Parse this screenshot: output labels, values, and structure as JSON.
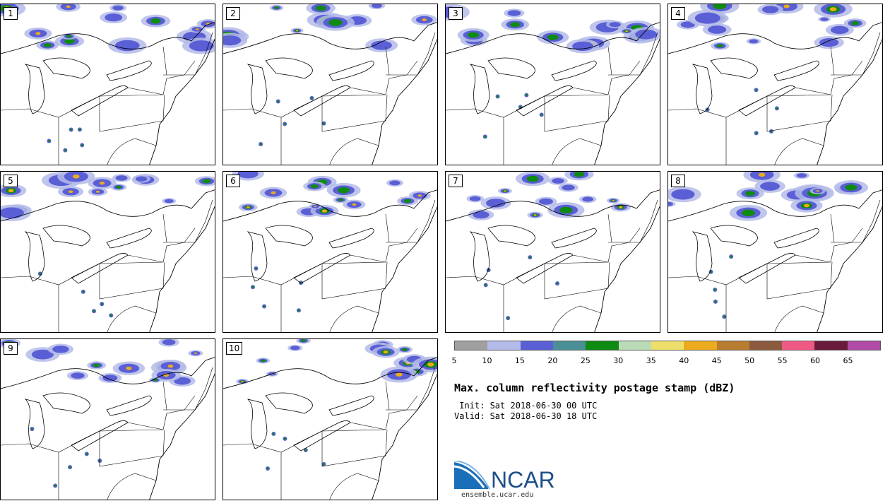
{
  "panels": [
    {
      "label": "1"
    },
    {
      "label": "2"
    },
    {
      "label": "3"
    },
    {
      "label": "4"
    },
    {
      "label": "5"
    },
    {
      "label": "6"
    },
    {
      "label": "7"
    },
    {
      "label": "8"
    },
    {
      "label": "9"
    },
    {
      "label": "10"
    }
  ],
  "colorbar": {
    "colors": [
      "#a0a0a0",
      "#b4bbe8",
      "#5a5fd6",
      "#4a8f96",
      "#0f8a12",
      "#b9dbb8",
      "#eedf6a",
      "#ecab1f",
      "#b87d30",
      "#8c5a3e",
      "#ef5a84",
      "#6a1a3a",
      "#b04ca8"
    ],
    "ticks": [
      "5",
      "10",
      "15",
      "20",
      "25",
      "30",
      "35",
      "40",
      "45",
      "50",
      "55",
      "60",
      "65"
    ]
  },
  "title": "Max. column reflectivity postage stamp (dBZ)",
  "init": " Init: Sat 2018-06-30 00 UTC",
  "valid": "Valid: Sat 2018-06-30 18 UTC",
  "logo": {
    "text": "NCAR",
    "url": "ensemble.ucar.edu",
    "color": "#1b4f8a",
    "accent": "#2f8fd6"
  }
}
